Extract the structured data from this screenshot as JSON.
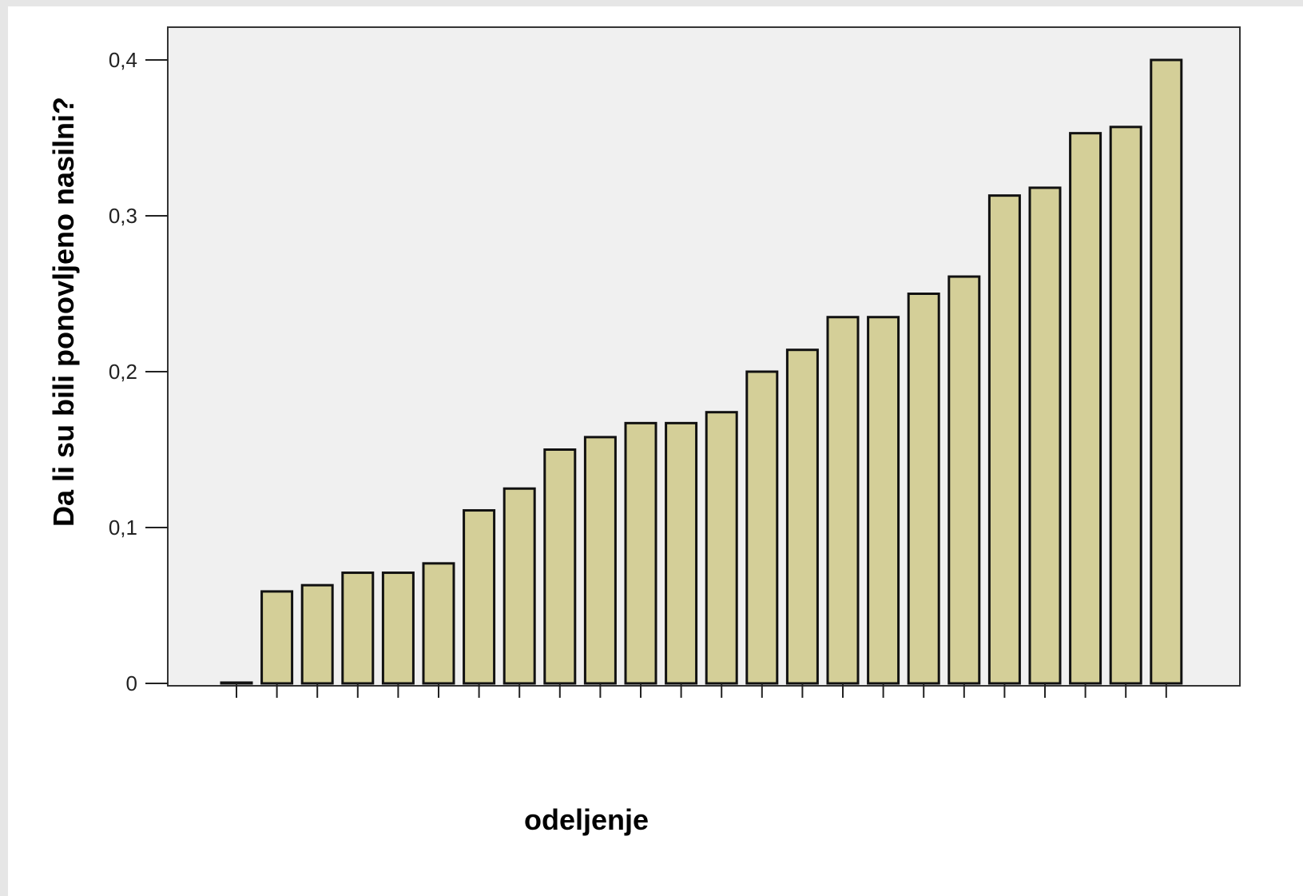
{
  "chart_data": {
    "type": "bar",
    "ylabel": "Da li su bili ponovljeno nasilni?",
    "xlabel": "odeljenje",
    "ylim": [
      0,
      0.42
    ],
    "yticks": [
      {
        "value": 0,
        "label": "0"
      },
      {
        "value": 0.1,
        "label": "0,1"
      },
      {
        "value": 0.2,
        "label": "0,2"
      },
      {
        "value": 0.3,
        "label": "0,3"
      },
      {
        "value": 0.4,
        "label": "0,4"
      }
    ],
    "categories": [
      "",
      "",
      "",
      "",
      "",
      "",
      "",
      "",
      "",
      "",
      "",
      "",
      "",
      "",
      "",
      "",
      "",
      "",
      "",
      "",
      "",
      "",
      "",
      ""
    ],
    "values": [
      0.0,
      0.059,
      0.063,
      0.071,
      0.071,
      0.077,
      0.111,
      0.125,
      0.15,
      0.158,
      0.167,
      0.167,
      0.174,
      0.2,
      0.214,
      0.235,
      0.235,
      0.25,
      0.261,
      0.313,
      0.318,
      0.353,
      0.357,
      0.4
    ],
    "colors": {
      "bar_fill": "#d4cf98",
      "bar_stroke": "#111111",
      "plot_background": "#f0f0f0",
      "page_background": "#ffffff"
    },
    "grid": false,
    "legend": "none"
  }
}
